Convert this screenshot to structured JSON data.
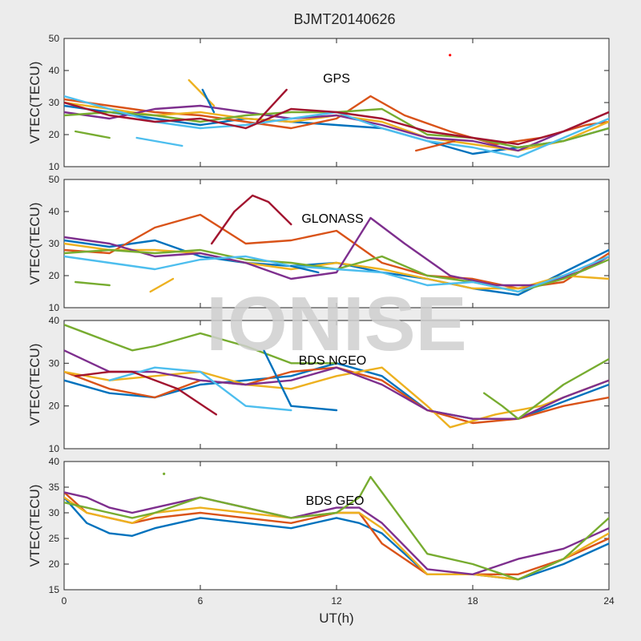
{
  "figure_title": "BJMT20140626",
  "watermark": "IONISE",
  "xlabel": "UT(h)",
  "chart_data": [
    {
      "type": "line",
      "annotation": "GPS",
      "ylabel": "VTEC(TECU)",
      "xlim": [
        0,
        24
      ],
      "ylim": [
        10,
        50
      ],
      "xticks": [
        0,
        6,
        12,
        18,
        24
      ],
      "yticks": [
        10,
        20,
        30,
        40,
        50
      ],
      "show_xtick_labels": false,
      "grid": false,
      "outliers": [
        {
          "x": 17.0,
          "y": 44.8,
          "color": "#ff0000"
        }
      ],
      "series": [
        {
          "color": "#0072bd",
          "x": [
            0,
            2,
            4,
            6,
            8,
            10,
            12,
            14,
            16,
            18,
            20,
            22,
            24
          ],
          "y": [
            29,
            27,
            25,
            23,
            25,
            24,
            23,
            22,
            18,
            14,
            16,
            18,
            22
          ]
        },
        {
          "color": "#d95319",
          "x": [
            0,
            2,
            4,
            6,
            8,
            10,
            12,
            13.5,
            15,
            17,
            19,
            21,
            23,
            24
          ],
          "y": [
            31,
            29,
            27,
            26,
            24,
            22,
            25,
            32,
            26,
            21,
            17,
            19,
            23,
            24
          ]
        },
        {
          "color": "#edb120",
          "x": [
            0,
            2,
            4,
            6,
            8,
            10,
            12,
            14,
            16,
            18,
            20,
            22,
            24
          ],
          "y": [
            30,
            28,
            26,
            27,
            25,
            24,
            26,
            24,
            19,
            17,
            15,
            18,
            24
          ]
        },
        {
          "color": "#7e2f8e",
          "x": [
            0,
            2,
            4,
            6,
            8,
            10,
            12,
            14,
            16,
            18,
            20,
            22,
            24
          ],
          "y": [
            27,
            25,
            28,
            29,
            27,
            25,
            26,
            23,
            19,
            18,
            15,
            21,
            27
          ]
        },
        {
          "color": "#77ac30",
          "x": [
            0,
            2,
            4,
            6,
            8,
            10,
            12,
            14,
            16,
            18,
            20,
            22,
            24
          ],
          "y": [
            26,
            27,
            26,
            24,
            26,
            27,
            27,
            28,
            20,
            19,
            16,
            18,
            22
          ]
        },
        {
          "color": "#4dbeee",
          "x": [
            0,
            2,
            4,
            6,
            8,
            10,
            12,
            14,
            16,
            18,
            20,
            22,
            24
          ],
          "y": [
            32,
            28,
            24,
            22,
            23,
            25,
            27,
            22,
            18,
            16,
            13,
            19,
            25
          ]
        },
        {
          "color": "#a2142f",
          "x": [
            0,
            2,
            4,
            6,
            8,
            10,
            12,
            14,
            16,
            18,
            20,
            22,
            24
          ],
          "y": [
            30,
            26,
            24,
            25,
            22,
            28,
            27,
            25,
            21,
            19,
            17,
            21,
            27
          ]
        }
      ],
      "segments": [
        {
          "color": "#4dbeee",
          "x": [
            3.2,
            5.2
          ],
          "y": [
            19,
            16.5
          ]
        },
        {
          "color": "#77ac30",
          "x": [
            0.5,
            2
          ],
          "y": [
            21,
            19
          ]
        },
        {
          "color": "#a2142f",
          "x": [
            8.5,
            9.8
          ],
          "y": [
            24,
            34
          ]
        },
        {
          "color": "#d95319",
          "x": [
            15.5,
            17.2
          ],
          "y": [
            15,
            18
          ]
        },
        {
          "color": "#edb120",
          "x": [
            5.5,
            6.6
          ],
          "y": [
            37,
            29
          ]
        },
        {
          "color": "#0072bd",
          "x": [
            6.1,
            6.6
          ],
          "y": [
            34,
            27
          ]
        }
      ]
    },
    {
      "type": "line",
      "annotation": "GLONASS",
      "ylabel": "VTEC(TECU)",
      "xlim": [
        0,
        24
      ],
      "ylim": [
        10,
        50
      ],
      "xticks": [
        0,
        6,
        12,
        18,
        24
      ],
      "yticks": [
        10,
        20,
        30,
        40,
        50
      ],
      "show_xtick_labels": false,
      "grid": false,
      "series": [
        {
          "color": "#0072bd",
          "x": [
            0,
            2,
            4,
            6,
            8,
            10,
            12,
            14,
            16,
            18,
            20,
            22,
            24
          ],
          "y": [
            31,
            29,
            31,
            26,
            24,
            23,
            24,
            21,
            19,
            16,
            14,
            21,
            28
          ]
        },
        {
          "color": "#d95319",
          "x": [
            0,
            2,
            4,
            6,
            8,
            10,
            12,
            14,
            16,
            18,
            20,
            22,
            24
          ],
          "y": [
            28,
            27,
            35,
            39,
            30,
            31,
            34,
            24,
            20,
            19,
            16,
            18,
            27
          ]
        },
        {
          "color": "#edb120",
          "x": [
            0,
            2,
            4,
            6,
            8,
            10,
            12,
            14,
            16,
            18,
            20,
            22,
            24
          ],
          "y": [
            30,
            28,
            28,
            27,
            24,
            22,
            24,
            22,
            19,
            16,
            16,
            20,
            19
          ]
        },
        {
          "color": "#7e2f8e",
          "x": [
            0,
            2,
            4,
            6,
            8,
            10,
            12,
            13.5,
            15,
            17,
            19,
            21,
            23,
            24
          ],
          "y": [
            32,
            30,
            26,
            27,
            24,
            19,
            21,
            38,
            30,
            20,
            17,
            17,
            22,
            26
          ]
        },
        {
          "color": "#77ac30",
          "x": [
            0,
            2,
            4,
            6,
            8,
            10,
            12,
            14,
            16,
            18,
            20,
            22,
            24
          ],
          "y": [
            27,
            28,
            27,
            28,
            25,
            24,
            22,
            26,
            20,
            18,
            15,
            19,
            25
          ]
        },
        {
          "color": "#4dbeee",
          "x": [
            0,
            2,
            4,
            6,
            8,
            10,
            12,
            14,
            16,
            18,
            20,
            22,
            24
          ],
          "y": [
            26,
            24,
            22,
            25,
            26,
            23,
            22,
            21,
            17,
            18,
            15,
            20,
            26
          ]
        }
      ],
      "segments": [
        {
          "color": "#a2142f",
          "x": [
            6.5,
            7.5,
            8.3,
            9,
            10
          ],
          "y": [
            30,
            40,
            45,
            43,
            36
          ]
        },
        {
          "color": "#77ac30",
          "x": [
            0.5,
            2
          ],
          "y": [
            18,
            17
          ]
        },
        {
          "color": "#edb120",
          "x": [
            3.8,
            4.8
          ],
          "y": [
            15,
            19
          ]
        },
        {
          "color": "#0072bd",
          "x": [
            10,
            11.2
          ],
          "y": [
            23,
            21
          ]
        }
      ]
    },
    {
      "type": "line",
      "annotation": "BDS NGEO",
      "ylabel": "VTEC(TECU)",
      "xlim": [
        0,
        24
      ],
      "ylim": [
        10,
        40
      ],
      "xticks": [
        0,
        6,
        12,
        18,
        24
      ],
      "yticks": [
        10,
        20,
        30,
        40
      ],
      "show_xtick_labels": false,
      "grid": false,
      "series": [
        {
          "color": "#0072bd",
          "x": [
            0,
            2,
            4,
            6,
            8,
            10,
            12,
            14,
            16,
            18,
            20,
            22,
            24
          ],
          "y": [
            26,
            23,
            22,
            25,
            26,
            27,
            30,
            27,
            19,
            17,
            17,
            21,
            25
          ]
        },
        {
          "color": "#d95319",
          "x": [
            0,
            2,
            4,
            6,
            8,
            10,
            12,
            14,
            16,
            18,
            20,
            22,
            24
          ],
          "y": [
            28,
            24,
            22,
            26,
            25,
            28,
            29,
            26,
            19,
            16,
            17,
            20,
            22
          ]
        },
        {
          "color": "#edb120",
          "x": [
            0,
            2,
            4,
            6,
            8,
            10,
            12,
            14,
            16,
            17,
            19,
            21,
            23,
            24
          ],
          "y": [
            28,
            26,
            27,
            28,
            25,
            24,
            27,
            29,
            20,
            15,
            18,
            20,
            24,
            26
          ]
        },
        {
          "color": "#7e2f8e",
          "x": [
            0,
            2,
            4,
            6,
            8,
            10,
            12,
            14,
            16,
            18,
            20,
            22,
            24
          ],
          "y": [
            33,
            28,
            28,
            26,
            25,
            26,
            29,
            25,
            19,
            17,
            17,
            22,
            26
          ]
        },
        {
          "color": "#77ac30",
          "x": [
            0,
            2,
            3,
            4,
            6,
            8,
            10,
            12
          ],
          "y": [
            39,
            35,
            33,
            34,
            37,
            34,
            30,
            30
          ]
        },
        {
          "color": "#4dbeee",
          "x": [
            2,
            4,
            6,
            8,
            10
          ],
          "y": [
            26,
            29,
            28,
            20,
            19
          ]
        }
      ],
      "segments": [
        {
          "color": "#a2142f",
          "x": [
            0.5,
            2,
            3,
            5,
            6.7
          ],
          "y": [
            27,
            28,
            28,
            24,
            18
          ]
        },
        {
          "color": "#0072bd",
          "x": [
            8.8,
            10,
            12
          ],
          "y": [
            33,
            20,
            19
          ]
        },
        {
          "color": "#77ac30",
          "x": [
            18.5,
            19.3,
            20,
            22,
            24
          ],
          "y": [
            23,
            20,
            17,
            25,
            31
          ]
        }
      ]
    },
    {
      "type": "line",
      "annotation": "BDS GEO",
      "ylabel": "VTEC(TECU)",
      "xlabel": "UT(h)",
      "xlim": [
        0,
        24
      ],
      "ylim": [
        15,
        40
      ],
      "xticks": [
        0,
        6,
        12,
        18,
        24
      ],
      "yticks": [
        15,
        20,
        25,
        30,
        35,
        40
      ],
      "show_xtick_labels": true,
      "grid": false,
      "outliers": [
        {
          "x": 4.4,
          "y": 37.6,
          "color": "#77ac30"
        }
      ],
      "series": [
        {
          "color": "#0072bd",
          "x": [
            0,
            1,
            2,
            3,
            4,
            6,
            8,
            10,
            12,
            13,
            14,
            16,
            18,
            20,
            22,
            24
          ],
          "y": [
            33,
            28,
            26,
            25.5,
            27,
            29,
            28,
            27,
            29,
            28,
            26,
            18,
            18,
            17,
            20,
            24
          ]
        },
        {
          "color": "#d95319",
          "x": [
            0,
            1,
            2,
            3,
            4,
            6,
            8,
            10,
            12,
            13,
            14,
            16,
            18,
            20,
            22,
            24
          ],
          "y": [
            34,
            30,
            29,
            28,
            29,
            30,
            29,
            28,
            30,
            30,
            24,
            18,
            18,
            18,
            21,
            25
          ]
        },
        {
          "color": "#edb120",
          "x": [
            0,
            1,
            2,
            3,
            4,
            6,
            8,
            10,
            12,
            13,
            14,
            16,
            18,
            20,
            22,
            24
          ],
          "y": [
            33,
            30,
            29,
            28,
            30,
            31,
            30,
            29,
            30,
            30,
            27,
            18,
            18,
            17,
            21,
            26
          ]
        },
        {
          "color": "#7e2f8e",
          "x": [
            0,
            1,
            2,
            3,
            4,
            6,
            8,
            10,
            12,
            13,
            14,
            16,
            18,
            20,
            22,
            24
          ],
          "y": [
            34,
            33,
            31,
            30,
            31,
            33,
            31,
            29,
            31,
            31,
            28,
            19,
            18,
            21,
            23,
            27
          ]
        },
        {
          "color": "#77ac30",
          "x": [
            0,
            1,
            2,
            3,
            4,
            6,
            8,
            10,
            12,
            13,
            13.5,
            14,
            16,
            18,
            20,
            22,
            24
          ],
          "y": [
            32,
            31,
            30,
            29,
            30,
            33,
            31,
            29,
            30,
            33,
            37,
            34,
            22,
            20,
            17,
            21,
            29
          ]
        }
      ]
    }
  ]
}
